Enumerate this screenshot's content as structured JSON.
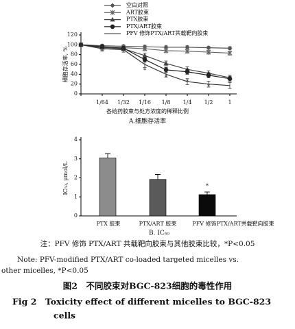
{
  "chart_data": [
    {
      "type": "line",
      "subtitle": "A.细胞存活率",
      "xlabel": "各给药胶束与处方浓度的稀释比例",
      "ylabel": "细胞存活率, %",
      "categories": [
        null,
        "1/64",
        "1/32",
        "1/16",
        "1/8",
        "1/4",
        "1/2",
        "1"
      ],
      "ylim": [
        0,
        120
      ],
      "yticks": [
        0,
        20,
        40,
        60,
        80,
        100,
        120
      ],
      "legend": "top-left",
      "series": [
        {
          "name": "空白对照",
          "color": "#555555",
          "marker": "diamond",
          "values": [
            100,
            98,
            97,
            96,
            95,
            95,
            94,
            93
          ],
          "errors": [
            2,
            3,
            3,
            3,
            3,
            3,
            3,
            3
          ]
        },
        {
          "name": "ART胶束",
          "color": "#666666",
          "marker": "x",
          "values": [
            100,
            95,
            94,
            92,
            88,
            87,
            85,
            83
          ],
          "errors": [
            2,
            4,
            4,
            4,
            4,
            4,
            4,
            4
          ]
        },
        {
          "name": "PTX胶束",
          "color": "#444444",
          "marker": "triangle",
          "values": [
            100,
            94,
            92,
            78,
            62,
            50,
            42,
            33
          ],
          "errors": [
            2,
            5,
            4,
            5,
            5,
            5,
            5,
            5
          ]
        },
        {
          "name": "PTX/ART胶束",
          "color": "#222222",
          "marker": "circle",
          "values": [
            100,
            96,
            93,
            70,
            49,
            45,
            38,
            31
          ],
          "errors": [
            2,
            4,
            4,
            5,
            5,
            5,
            5,
            5
          ]
        },
        {
          "name": "PFV 修饰PTX/ART共载靶向胶束",
          "color": "#333333",
          "marker": "none",
          "values": [
            100,
            92,
            90,
            60,
            40,
            25,
            20,
            17
          ],
          "errors": [
            2,
            5,
            5,
            6,
            6,
            6,
            6,
            6
          ]
        }
      ],
      "annotations": [
        {
          "text": "*",
          "x": "1/16",
          "y": 47
        },
        {
          "text": "*",
          "x": "1/8",
          "y": 33
        },
        {
          "text": "*",
          "x": "1/4",
          "y": 24
        },
        {
          "text": "*",
          "x": "1/2",
          "y": 14
        }
      ]
    },
    {
      "type": "bar",
      "subtitle": "B. IC₅₀",
      "ylabel": "IC₅₀, μmol/L",
      "categories": [
        "PTX 胶束",
        "PTX/ART 胶束",
        "PFV 修饰PTX/ART共载靶向胶束"
      ],
      "values": [
        3.05,
        1.92,
        1.12
      ],
      "errors": [
        0.22,
        0.26,
        0.14
      ],
      "colors": [
        "#8c8c8c",
        "#5a5a5a",
        "#0a0a0a"
      ],
      "ylim": [
        0,
        4
      ],
      "yticks": [
        0,
        1,
        2,
        3,
        4
      ],
      "annotations": [
        {
          "text": "*",
          "x": "PFV 修饰PTX/ART共载靶向胶束",
          "y": 1.55
        }
      ]
    }
  ],
  "note_cn": "注：PFV 修饰 PTX/ART 共载靶向胶束与其他胶束比较，*P<0.05",
  "note_en_1": "Note: PFV-modified PTX/ART co-loaded targeted micelles vs.",
  "note_en_2": "other micelles, *P<0.05",
  "caption_cn": "图2　不同胶束对BGC-823细胞的毒性作用",
  "caption_en_1": "Fig 2　Toxicity effect of different micelles to BGC-823",
  "caption_en_2": "cells"
}
